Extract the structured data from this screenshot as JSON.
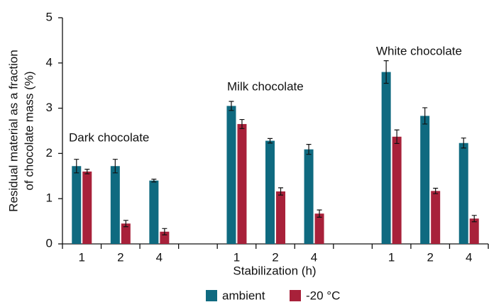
{
  "chart_data": {
    "type": "bar",
    "y_label": [
      "Residual material as a fraction",
      "of chocolate mass (%)"
    ],
    "x_label": "Stabilization (h)",
    "annotations": [
      "Dark chocolate",
      "Milk chocolate",
      "White chocolate"
    ],
    "categories": [
      "1",
      "2",
      "4",
      null,
      "1",
      "2",
      "4",
      null,
      "1",
      "2",
      "4"
    ],
    "series": [
      {
        "name": "ambient",
        "color": "#0f6a80",
        "values": [
          1.72,
          1.72,
          1.4,
          null,
          3.05,
          2.28,
          2.09,
          null,
          3.8,
          2.83,
          2.23
        ],
        "errors": [
          0.15,
          0.15,
          0.03,
          null,
          0.1,
          0.05,
          0.11,
          null,
          0.25,
          0.18,
          0.11
        ]
      },
      {
        "name": "-20 °C",
        "color": "#a8213a",
        "values": [
          1.6,
          0.45,
          0.27,
          null,
          2.65,
          1.16,
          0.67,
          null,
          2.37,
          1.17,
          0.56
        ],
        "errors": [
          0.05,
          0.07,
          0.07,
          null,
          0.1,
          0.08,
          0.08,
          null,
          0.15,
          0.06,
          0.07
        ]
      }
    ],
    "ylim": [
      0,
      5
    ],
    "yticks": [
      0,
      1,
      2,
      3,
      4,
      5
    ]
  }
}
